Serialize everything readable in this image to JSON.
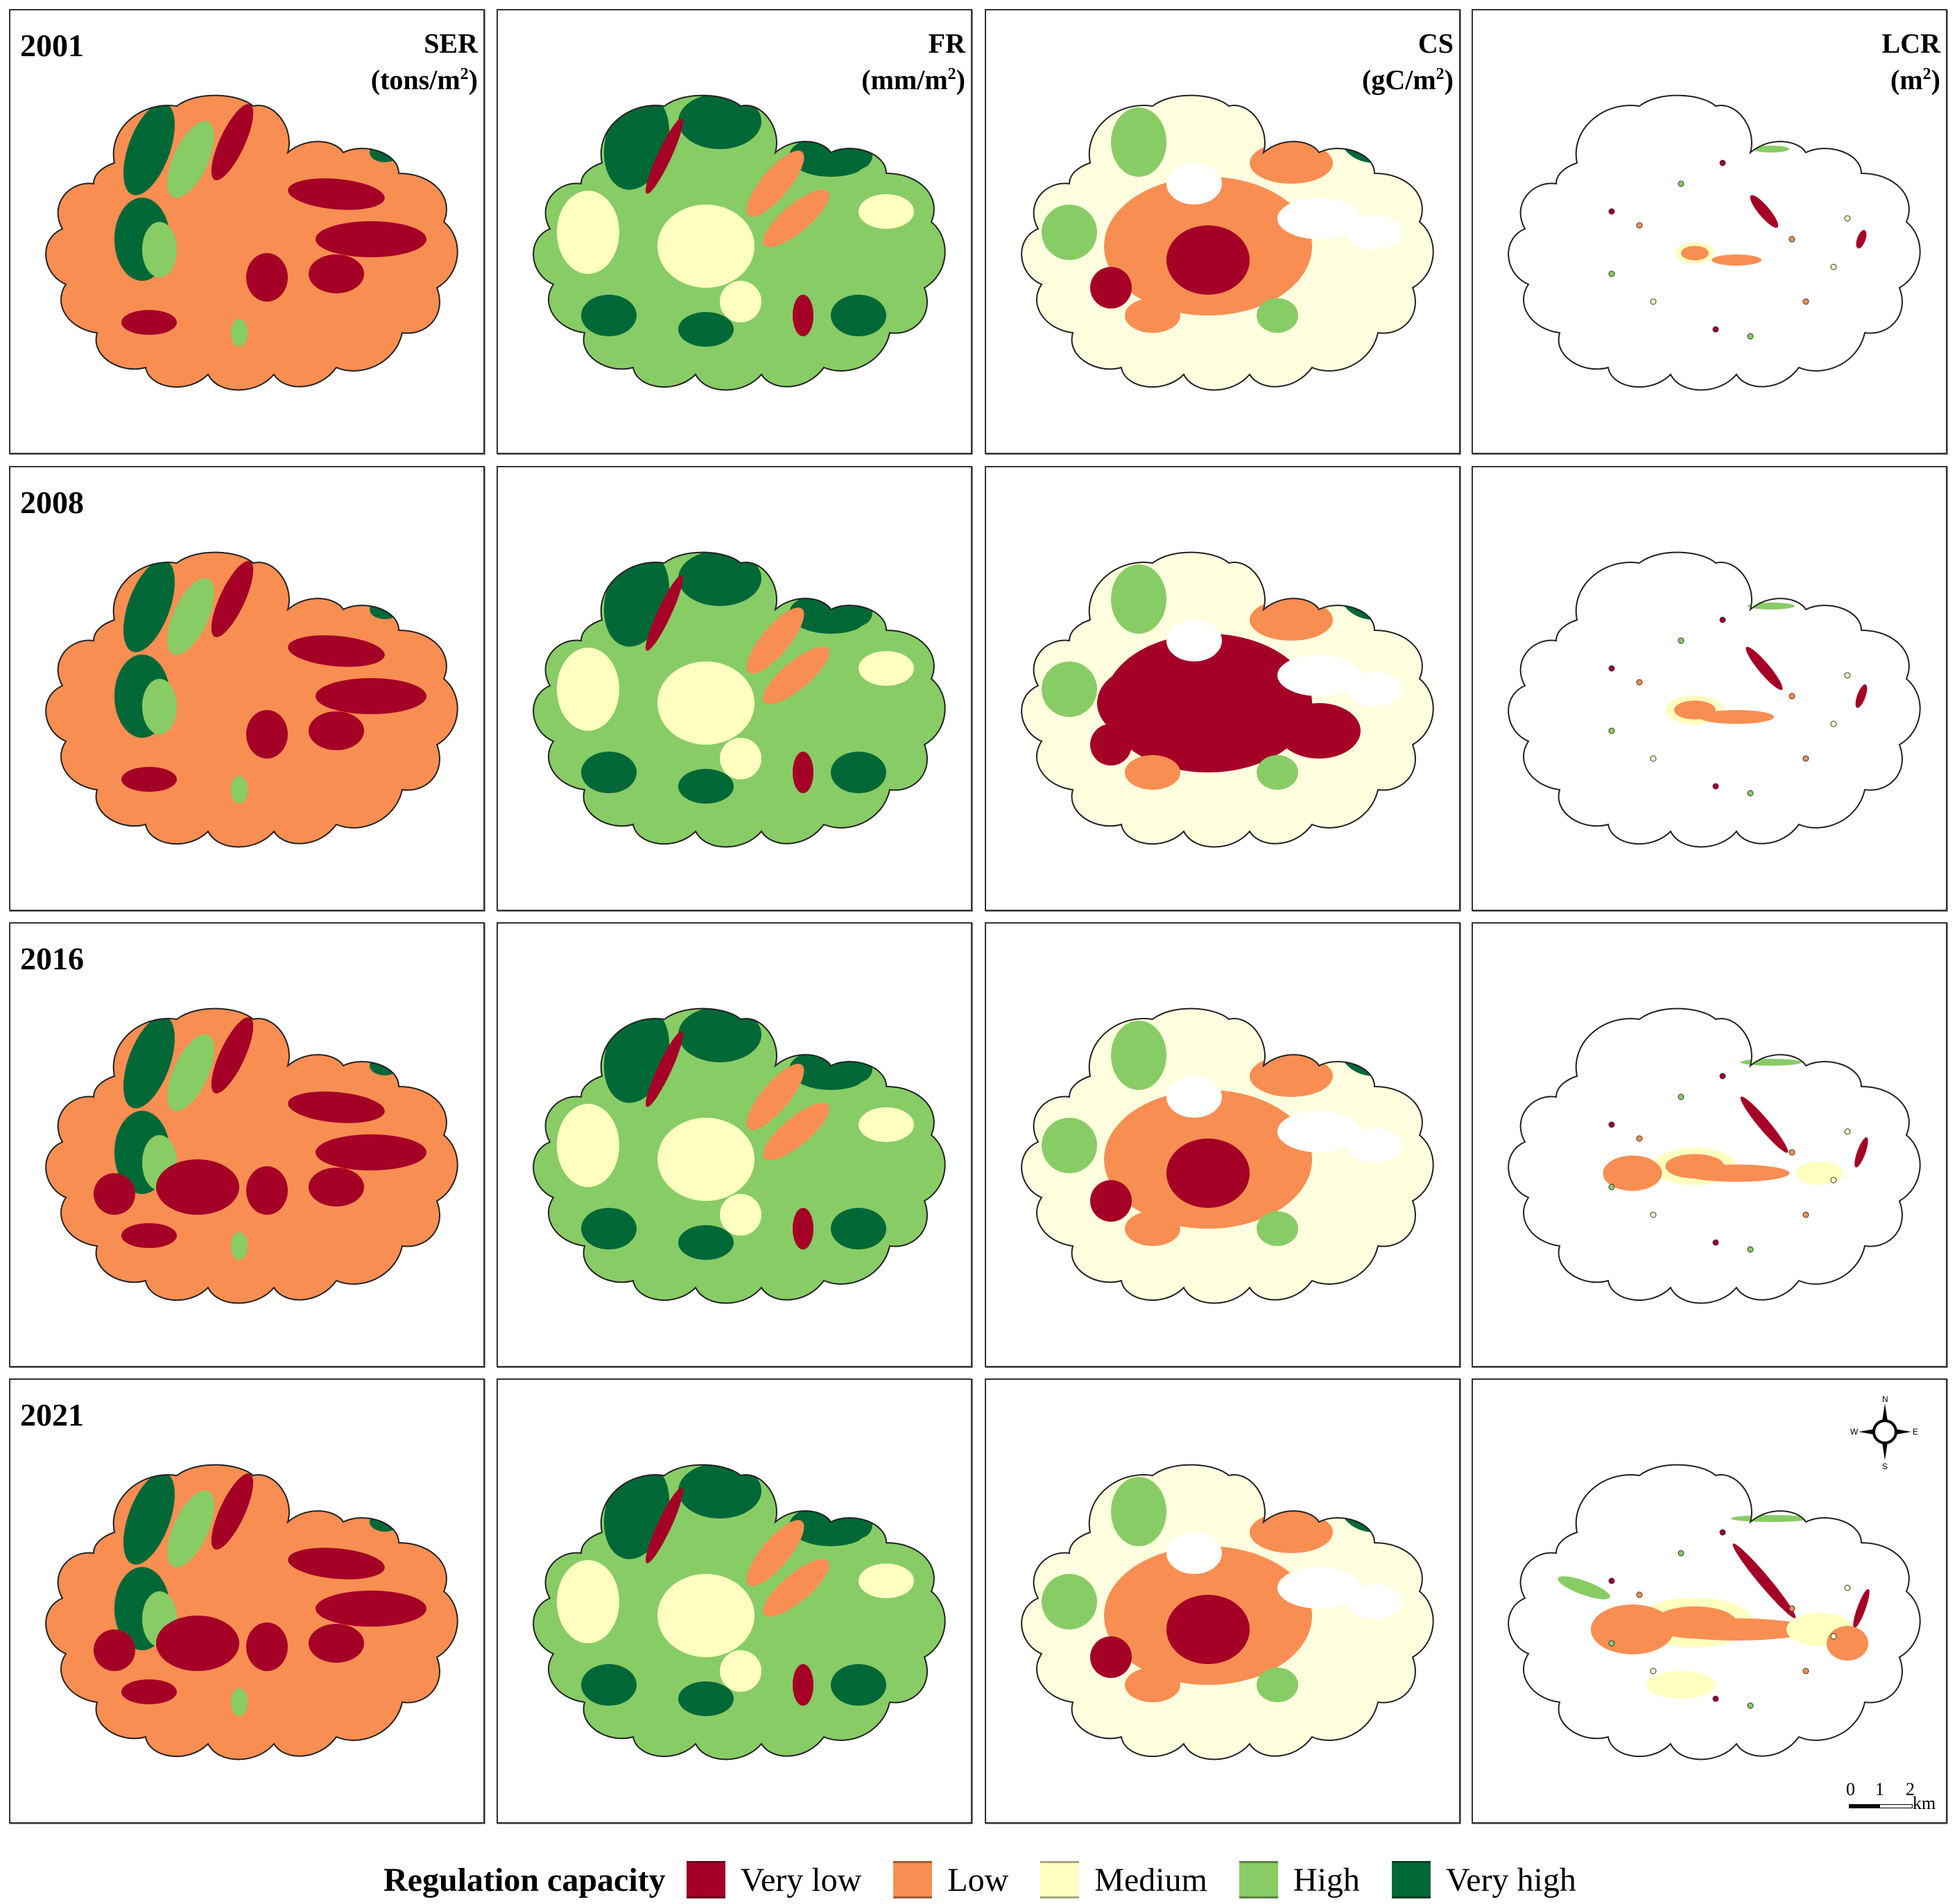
{
  "figure": {
    "years": [
      "2001",
      "2008",
      "2016",
      "2021"
    ],
    "variables": [
      {
        "name": "SER",
        "unit_base": "(tons/m",
        "unit_sup": "2",
        "unit_close": ")"
      },
      {
        "name": "FR",
        "unit_base": "(mm/m",
        "unit_sup": "2",
        "unit_close": ")"
      },
      {
        "name": "CS",
        "unit_base": "(gC/m",
        "unit_sup": "2",
        "unit_close": ")"
      },
      {
        "name": "LCR",
        "unit_base": "(m",
        "unit_sup": "2",
        "unit_close": ")"
      }
    ]
  },
  "legend": {
    "title": "Regulation capacity",
    "classes": [
      {
        "label": "Very low",
        "color": "#a50026"
      },
      {
        "label": "Low",
        "color": "#f98e52"
      },
      {
        "label": "Medium",
        "color": "#ffffc0"
      },
      {
        "label": "High",
        "color": "#88cc66"
      },
      {
        "label": "Very high",
        "color": "#006837"
      }
    ]
  },
  "compass": {
    "n": "N",
    "s": "S",
    "e": "E",
    "w": "W"
  },
  "scalebar": {
    "zero": "0",
    "one": "1",
    "two": "2",
    "unit": "km"
  },
  "chart_data": {
    "type": "heatmap",
    "title": "Spatial distribution of regulation capacity (SER, FR, CS, LCR), 2001–2021",
    "rows": [
      "2001",
      "2008",
      "2016",
      "2021"
    ],
    "columns": [
      "SER (tons/m2)",
      "FR (mm/m2)",
      "CS (gC/m2)",
      "LCR (m2)"
    ],
    "classes": [
      "Very low",
      "Low",
      "Medium",
      "High",
      "Very high"
    ],
    "dominant_class": [
      [
        "Low",
        "High",
        "Low",
        "Medium"
      ],
      [
        "Low",
        "High",
        "Very low",
        "Medium"
      ],
      [
        "Low",
        "High",
        "Low",
        "Low"
      ],
      [
        "Low",
        "High",
        "Low",
        "Low"
      ]
    ],
    "scale_km": [
      0,
      1,
      2
    ]
  }
}
